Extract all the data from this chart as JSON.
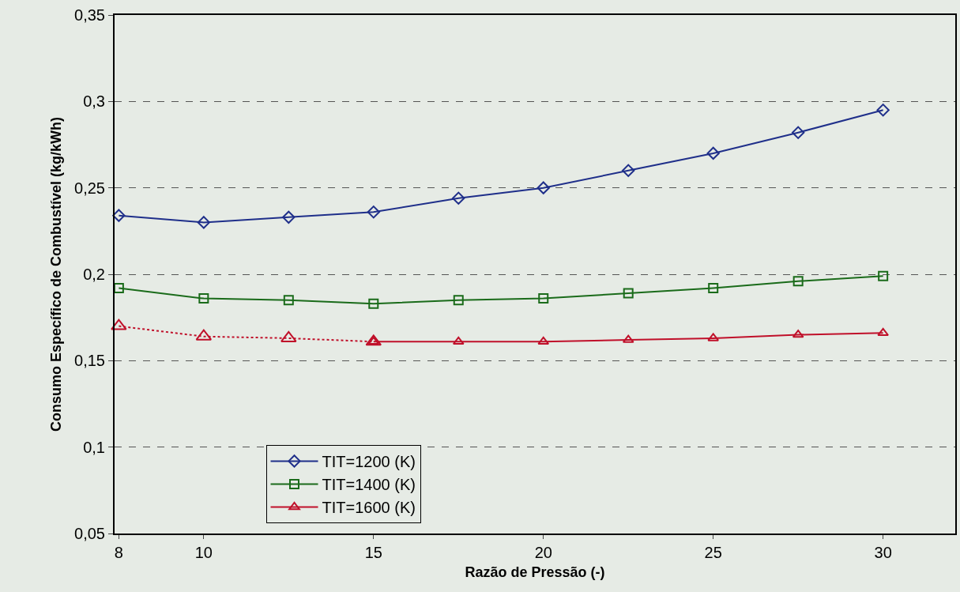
{
  "chart_data": {
    "type": "line",
    "xlabel": "Razão de Pressão (-)",
    "ylabel": "Consumo Específico de Combustível (kg/kWh)",
    "categories": [
      "8",
      "10",
      null,
      "15",
      null,
      "20",
      null,
      "25",
      null,
      "30"
    ],
    "ylim": [
      0.05,
      0.35
    ],
    "yticks": [
      {
        "value": 0.05,
        "label": "0,05"
      },
      {
        "value": 0.1,
        "label": "0,1"
      },
      {
        "value": 0.15,
        "label": "0,15"
      },
      {
        "value": 0.2,
        "label": "0,2"
      },
      {
        "value": 0.25,
        "label": "0,25"
      },
      {
        "value": 0.3,
        "label": "0,3"
      },
      {
        "value": 0.35,
        "label": "0,35"
      }
    ],
    "grid": "y",
    "legend": "bottom left",
    "series": [
      {
        "name": "TIT=1200 (K)",
        "color": "#1f2f8a",
        "marker": "diamond",
        "line_style": "solid",
        "values": [
          0.234,
          0.23,
          0.233,
          0.236,
          0.244,
          0.25,
          0.26,
          0.27,
          0.282,
          0.295
        ]
      },
      {
        "name": "TIT=1400 (K)",
        "color": "#1a6b1a",
        "marker": "square",
        "line_style": "solid",
        "values": [
          0.192,
          0.186,
          0.185,
          0.183,
          0.185,
          0.186,
          0.189,
          0.192,
          0.196,
          0.199
        ]
      },
      {
        "name": "TIT=1600 (K)",
        "color": "#c0102a",
        "marker": "triangle",
        "line_style": "solid",
        "values": [
          null,
          null,
          null,
          0.161,
          0.161,
          0.161,
          0.162,
          0.163,
          0.165,
          0.166
        ]
      },
      {
        "color": "#c0102a",
        "marker": "triangle",
        "line_style": "dotted",
        "values": [
          0.17,
          0.164,
          0.163,
          0.161,
          null,
          null,
          null,
          null,
          null,
          null
        ]
      }
    ]
  }
}
